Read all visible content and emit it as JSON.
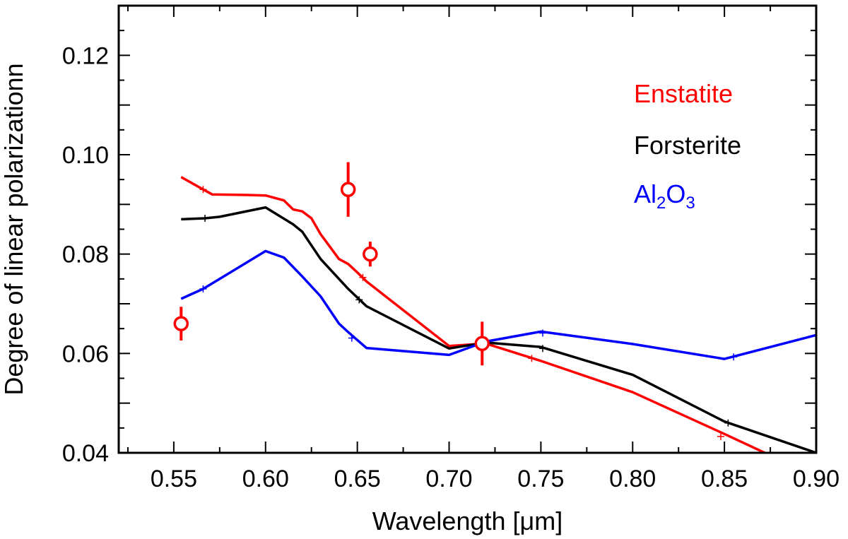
{
  "chart_data": {
    "type": "line",
    "title": "",
    "xlabel": "Wavelength [μm]",
    "ylabel": "Degree of linear polarizationn",
    "xlim": [
      0.52,
      0.9
    ],
    "ylim": [
      0.04,
      0.13
    ],
    "x_ticks": [
      "0.55",
      "0.60",
      "0.65",
      "0.70",
      "0.75",
      "0.80",
      "0.85",
      "0.90"
    ],
    "y_ticks": [
      "0.04",
      "0.06",
      "0.08",
      "0.10",
      "0.12"
    ],
    "legend_position": "top-right",
    "series": [
      {
        "name": "Enstatite",
        "color": "#ff0000",
        "x": [
          0.554,
          0.566,
          0.571,
          0.59,
          0.6,
          0.61,
          0.615,
          0.62,
          0.625,
          0.63,
          0.64,
          0.645,
          0.65,
          0.655,
          0.7,
          0.72,
          0.75,
          0.8,
          0.85,
          0.872
        ],
        "y": [
          0.0955,
          0.093,
          0.092,
          0.0919,
          0.0918,
          0.0908,
          0.089,
          0.0886,
          0.0872,
          0.084,
          0.079,
          0.078,
          0.0763,
          0.0745,
          0.0615,
          0.062,
          0.0585,
          0.0522,
          0.0438,
          0.04
        ],
        "markers_x": [
          0.566,
          0.653,
          0.745,
          0.848
        ],
        "markers_y": [
          0.093,
          0.0753,
          0.059,
          0.0433
        ]
      },
      {
        "name": "Forsterite",
        "color": "#000000",
        "x": [
          0.554,
          0.567,
          0.575,
          0.6,
          0.615,
          0.62,
          0.63,
          0.645,
          0.655,
          0.7,
          0.72,
          0.75,
          0.8,
          0.85,
          0.9
        ],
        "y": [
          0.087,
          0.0872,
          0.0875,
          0.0894,
          0.086,
          0.0845,
          0.079,
          0.073,
          0.0695,
          0.061,
          0.0622,
          0.0613,
          0.0557,
          0.0463,
          0.04
        ],
        "markers_x": [
          0.567,
          0.651,
          0.751,
          0.852
        ],
        "markers_y": [
          0.0872,
          0.0708,
          0.061,
          0.046
        ]
      },
      {
        "name": "Al2O3",
        "color": "#0000ff",
        "x": [
          0.554,
          0.566,
          0.575,
          0.6,
          0.61,
          0.62,
          0.63,
          0.64,
          0.645,
          0.655,
          0.7,
          0.72,
          0.75,
          0.8,
          0.85,
          0.9
        ],
        "y": [
          0.071,
          0.073,
          0.075,
          0.0806,
          0.0793,
          0.0755,
          0.0715,
          0.066,
          0.0643,
          0.0611,
          0.0597,
          0.0624,
          0.0644,
          0.0619,
          0.0589,
          0.0637
        ],
        "markers_x": [
          0.566,
          0.647,
          0.751,
          0.855
        ],
        "markers_y": [
          0.073,
          0.0631,
          0.0641,
          0.0593
        ]
      }
    ],
    "observations": {
      "color": "#ff0000",
      "x": [
        0.554,
        0.645,
        0.657,
        0.718
      ],
      "y": [
        0.066,
        0.093,
        0.08,
        0.062
      ],
      "yerr": [
        0.0034,
        0.0055,
        0.0025,
        0.0044
      ]
    }
  },
  "legend": {
    "items": [
      {
        "label": "Enstatite",
        "color": "#ff0000"
      },
      {
        "label": "Forsterite",
        "color": "#000000"
      },
      {
        "label_main": "Al",
        "sub1": "2",
        "mid": "O",
        "sub2": "3",
        "color": "#0000ff"
      }
    ]
  }
}
